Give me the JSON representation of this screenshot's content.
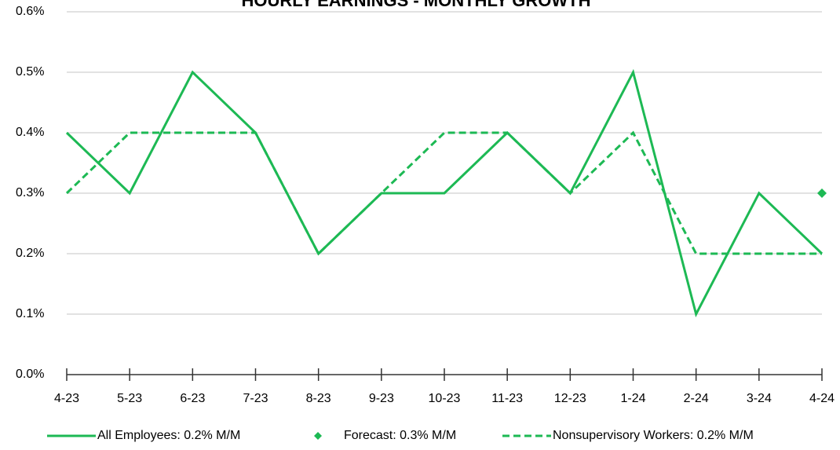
{
  "chart_data": {
    "type": "line",
    "title": "HOURLY EARNINGS - MONTHLY GROWTH",
    "categories": [
      "4-23",
      "5-23",
      "6-23",
      "7-23",
      "8-23",
      "9-23",
      "10-23",
      "11-23",
      "12-23",
      "1-24",
      "2-24",
      "3-24",
      "4-24"
    ],
    "series": [
      {
        "name": "All Employees: 0.2% M/M",
        "color": "#1db954",
        "style": "solid",
        "values": [
          0.4,
          0.3,
          0.5,
          0.4,
          0.2,
          0.3,
          0.3,
          0.4,
          0.3,
          0.5,
          0.1,
          0.3,
          0.2
        ]
      },
      {
        "name": "Forecast: 0.3% M/M",
        "color": "#1db954",
        "style": "marker",
        "values": [
          null,
          null,
          null,
          null,
          null,
          null,
          null,
          null,
          null,
          null,
          null,
          null,
          0.3
        ]
      },
      {
        "name": "Nonsupervisory Workers: 0.2% M/M",
        "color": "#1db954",
        "style": "dashed",
        "values": [
          0.3,
          0.4,
          0.4,
          0.4,
          0.2,
          0.3,
          0.4,
          0.4,
          0.3,
          0.4,
          0.2,
          0.2,
          0.2
        ]
      }
    ],
    "ylim": [
      0,
      0.6
    ],
    "yticks": [
      {
        "value": 0,
        "label": "0.0%"
      },
      {
        "value": 0.1,
        "label": "0.1%"
      },
      {
        "value": 0.2,
        "label": "0.2%"
      },
      {
        "value": 0.3,
        "label": "0.3%"
      },
      {
        "value": 0.4,
        "label": "0.4%"
      },
      {
        "value": 0.5,
        "label": "0.5%"
      },
      {
        "value": 0.6,
        "label": "0.6%"
      }
    ],
    "grid": true,
    "legend": "bottom"
  }
}
